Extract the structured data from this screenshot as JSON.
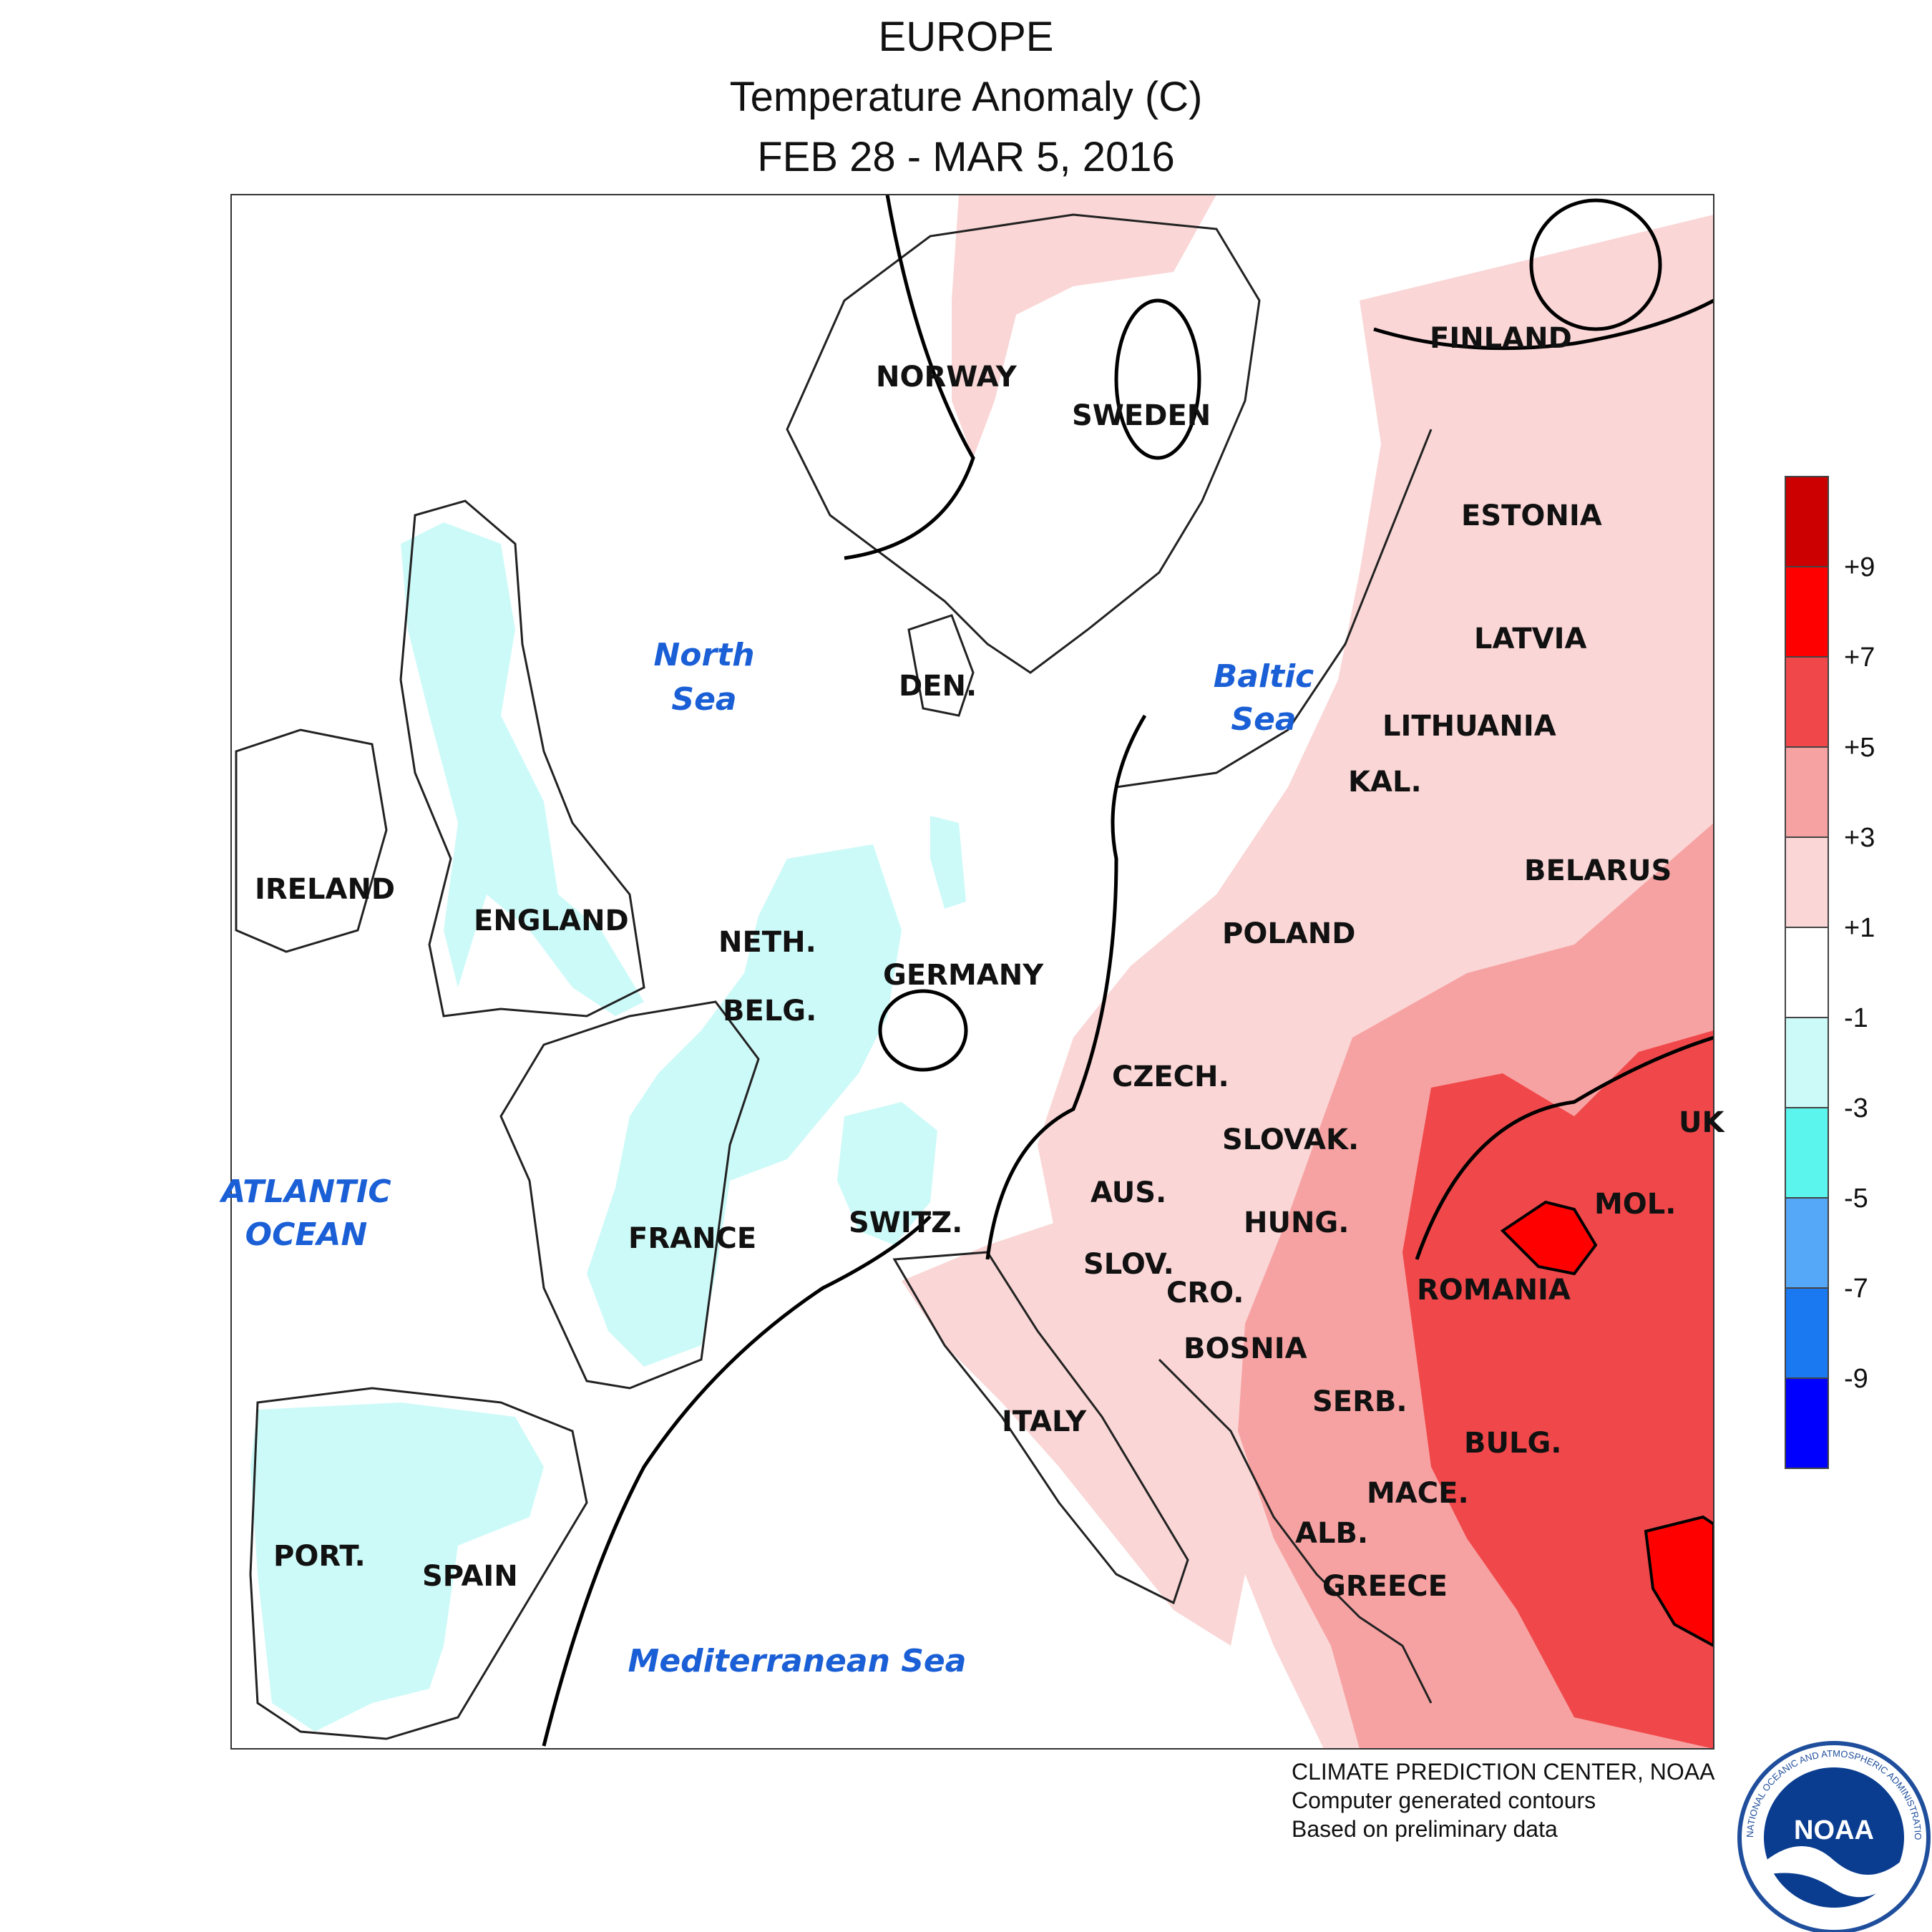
{
  "title": {
    "region": "EUROPE",
    "variable": "Temperature Anomaly (C)",
    "period": "FEB 28 - MAR 5, 2016"
  },
  "map": {
    "countries": [
      "NORWAY",
      "SWEDEN",
      "FINLAND",
      "ESTONIA",
      "LATVIA",
      "LITHUANIA",
      "KAL.",
      "BELARUS",
      "POLAND",
      "DEN.",
      "IRELAND",
      "ENGLAND",
      "NETH.",
      "BELG.",
      "GERMANY",
      "CZECH.",
      "SLOVAK.",
      "UK",
      "MOL.",
      "AUS.",
      "HUNG.",
      "FRANCE",
      "SWITZ.",
      "SLOV.",
      "CRO.",
      "ROMANIA",
      "BOSNIA",
      "SERB.",
      "BULG.",
      "ITALY",
      "MACE.",
      "ALB.",
      "GREECE",
      "PORT.",
      "SPAIN"
    ],
    "water_bodies": {
      "north_sea": [
        "North",
        "Sea"
      ],
      "baltic_sea": [
        "Baltic",
        "Sea"
      ],
      "atlantic_ocean": [
        "ATLANTIC",
        "OCEAN"
      ],
      "mediterranean": "Mediterranean Sea"
    },
    "anomaly_regions": {
      "warm_east_max_class": "+7 to +9",
      "cool_west_class": "-1 to -3"
    }
  },
  "legend": {
    "labels": [
      "+9",
      "+7",
      "+5",
      "+3",
      "+1",
      "-1",
      "-3",
      "-5",
      "-7",
      "-9"
    ],
    "colors": [
      "#cc0000",
      "#ff0000",
      "#f0484a",
      "#f7a2a2",
      "#fad6d6",
      "#ffffff",
      "#ccfaf8",
      "#5bf5ee",
      "#55a8f7",
      "#1a78f0",
      "#0000ff"
    ]
  },
  "credits": {
    "line1": "CLIMATE PREDICTION CENTER, NOAA",
    "line2": "Computer generated contours",
    "line3": "Based on preliminary data"
  },
  "logo": {
    "text": "NOAA",
    "ring_text": "NATIONAL OCEANIC AND ATMOSPHERIC ADMINISTRATION · U.S. DEPARTMENT OF COMMERCE"
  }
}
